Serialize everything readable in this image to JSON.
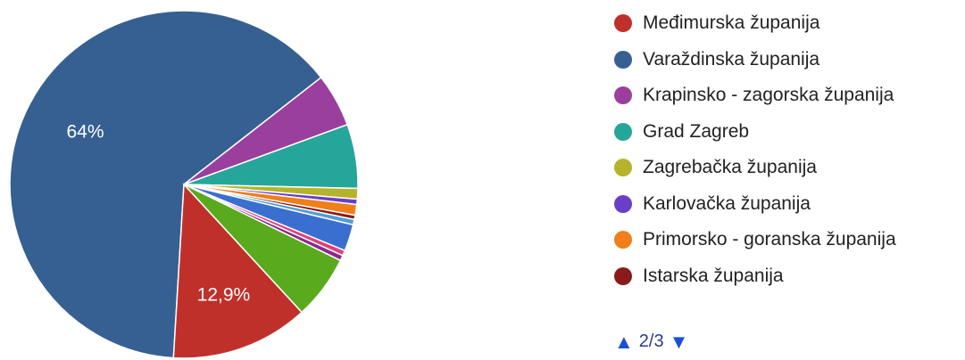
{
  "chart_data": {
    "type": "pie",
    "slices": [
      {
        "label": "Varaždinska županija",
        "value": 64.0,
        "color": "#366092",
        "display_label": "64%"
      },
      {
        "label": "Krapinsko - zagorska županija",
        "value": 5.0,
        "color": "#9b3f9e",
        "display_label": ""
      },
      {
        "label": "Grad Zagreb",
        "value": 6.0,
        "color": "#26a69a",
        "display_label": ""
      },
      {
        "label": "Zagrebačka županija",
        "value": 1.0,
        "color": "#b5b32a",
        "display_label": ""
      },
      {
        "label": "Karlovačka županija",
        "value": 0.5,
        "color": "#6a3fc8",
        "display_label": ""
      },
      {
        "label": "Primorsko - goranska županija",
        "value": 1.0,
        "color": "#ef7f1a",
        "display_label": ""
      },
      {
        "label": "Istarska županija",
        "value": 0.4,
        "color": "#8b1a1a",
        "display_label": ""
      },
      {
        "label": "",
        "value": 0.5,
        "color": "#4a9fd8",
        "display_label": ""
      },
      {
        "label": "",
        "value": 2.5,
        "color": "#3a6fd0",
        "display_label": ""
      },
      {
        "label": "",
        "value": 0.5,
        "color": "#e0407a",
        "display_label": ""
      },
      {
        "label": "",
        "value": 0.5,
        "color": "#8b2a8b",
        "display_label": ""
      },
      {
        "label": "",
        "value": 6.0,
        "color": "#5aaa1e",
        "display_label": ""
      },
      {
        "label": "Međimurska županija",
        "value": 12.9,
        "color": "#c0302b",
        "display_label": "12,9%"
      }
    ],
    "legend": [
      {
        "label": "Međimurska županija",
        "color": "#c0302b"
      },
      {
        "label": "Varaždinska županija",
        "color": "#366092"
      },
      {
        "label": "Krapinsko - zagorska županija",
        "color": "#9b3f9e"
      },
      {
        "label": "Grad Zagreb",
        "color": "#26a69a"
      },
      {
        "label": "Zagrebačka županija",
        "color": "#b5b32a"
      },
      {
        "label": "Karlovačka županija",
        "color": "#6a3fc8"
      },
      {
        "label": "Primorsko - goranska županija",
        "color": "#ef7f1a"
      },
      {
        "label": "Istarska županija",
        "color": "#8b1a1a"
      }
    ],
    "legend_position": "right"
  },
  "pager": {
    "text": "2/3",
    "up_icon": "triangle-up-icon",
    "down_icon": "triangle-down-icon"
  }
}
